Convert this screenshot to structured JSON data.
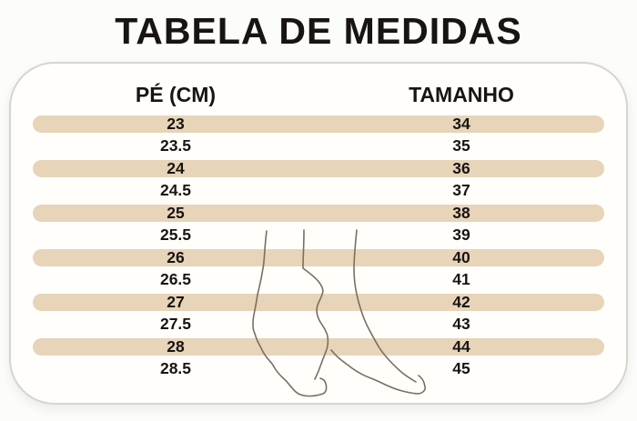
{
  "title": "TABELA DE MEDIDAS",
  "table": {
    "headers": {
      "foot": "PÉ (CM)",
      "size": "TAMANHO"
    },
    "rows": [
      {
        "foot": "23",
        "size": "34",
        "shaded": true
      },
      {
        "foot": "23.5",
        "size": "35",
        "shaded": false
      },
      {
        "foot": "24",
        "size": "36",
        "shaded": true
      },
      {
        "foot": "24.5",
        "size": "37",
        "shaded": false
      },
      {
        "foot": "25",
        "size": "38",
        "shaded": true
      },
      {
        "foot": "25.5",
        "size": "39",
        "shaded": false
      },
      {
        "foot": "26",
        "size": "40",
        "shaded": true
      },
      {
        "foot": "26.5",
        "size": "41",
        "shaded": false
      },
      {
        "foot": "27",
        "size": "42",
        "shaded": true
      },
      {
        "foot": "27.5",
        "size": "43",
        "shaded": false
      },
      {
        "foot": "28",
        "size": "44",
        "shaded": true
      },
      {
        "foot": "28.5",
        "size": "45",
        "shaded": false
      }
    ]
  },
  "watermark_icon": "feet-line-drawing",
  "colors": {
    "shaded_row": "#e7d4b9",
    "card_border": "#d8d4cf",
    "card_background": "#fffefb",
    "text": "#181411",
    "feet_outline": "#7c6e63"
  }
}
